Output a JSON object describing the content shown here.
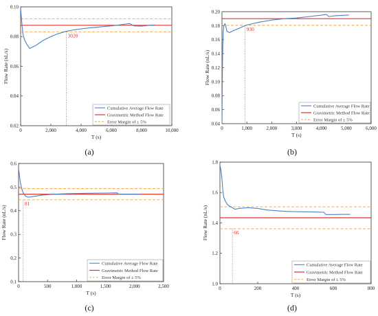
{
  "colors": {
    "cumulative": "#4a7fc1",
    "gravimetric": "#e0302a",
    "error_margin": "#f0a23a",
    "annotation": "#e0302a",
    "axis": "#333333",
    "vline": "#555555"
  },
  "chart_data": [
    {
      "panel": "(a)",
      "type": "line",
      "xlabel": "T (s)",
      "ylabel": "Flow Rate (nL/s)",
      "xlim": [
        0,
        10000
      ],
      "ylim": [
        0.02,
        0.1
      ],
      "xticks": [
        0,
        2000,
        4000,
        6000,
        8000,
        10000
      ],
      "xtick_labels": [
        "0",
        "2,000",
        "4,000",
        "6,000",
        "8,000",
        "10,000"
      ],
      "yticks": [
        0.02,
        0.04,
        0.06,
        0.08,
        0.1
      ],
      "ytick_labels": [
        "0.02",
        "0.04",
        "0.06",
        "0.08",
        "0.10"
      ],
      "legend_position": "bottom-right",
      "legend": [
        "Cumulative Average Flow Rate",
        "Gravimetric Method Flow Rate",
        "Error Margin of ± 5%"
      ],
      "gravimetric": 0.0876,
      "error_upper": 0.092,
      "error_lower": 0.0832,
      "annotation": {
        "x": 3020,
        "text": "3020"
      },
      "series": [
        {
          "x": [
            0,
            50,
            100,
            150,
            250,
            400,
            600,
            800,
            1000,
            1500,
            2000,
            2500,
            3000,
            3500,
            4000,
            4500,
            5000,
            5500,
            6000,
            6500,
            7000,
            7200,
            7500,
            8000,
            8500,
            8900
          ],
          "y": [
            0.099,
            0.093,
            0.087,
            0.082,
            0.078,
            0.075,
            0.072,
            0.073,
            0.074,
            0.0775,
            0.08,
            0.082,
            0.0835,
            0.0845,
            0.0852,
            0.0858,
            0.0862,
            0.0868,
            0.0872,
            0.0878,
            0.0885,
            0.0888,
            0.0872,
            0.087,
            0.0876,
            0.0878
          ]
        }
      ]
    },
    {
      "panel": "(b)",
      "type": "line",
      "xlabel": "T (s)",
      "ylabel": "Flow Rate (nL/s)",
      "xlim": [
        0,
        6000
      ],
      "ylim": [
        0.04,
        0.2
      ],
      "xticks": [
        0,
        1000,
        2000,
        3000,
        4000,
        5000,
        6000
      ],
      "xtick_labels": [
        "0",
        "1,000",
        "2,000",
        "3,000",
        "4,000",
        "5,000",
        "6,000"
      ],
      "yticks": [
        0.04,
        0.06,
        0.08,
        0.1,
        0.12,
        0.14,
        0.16,
        0.18,
        0.2
      ],
      "ytick_labels": [
        "0.04",
        "0.06",
        "0.08",
        "0.10",
        "0.12",
        "0.14",
        "0.16",
        "0.18",
        "0.20"
      ],
      "legend_position": "bottom-right",
      "legend": [
        "Cumulative Average Flow Rate",
        "Gravimetric Method Flow Rate",
        "Error Margin of ± 5%"
      ],
      "gravimetric": 0.19,
      "error_upper": 0.1995,
      "error_lower": 0.1805,
      "annotation": {
        "x": 930,
        "text": "930"
      },
      "series": [
        {
          "x": [
            0,
            10,
            25,
            50,
            80,
            120,
            160,
            200,
            300,
            400,
            600,
            800,
            1000,
            1500,
            2000,
            2500,
            3000,
            3500,
            4000,
            4200,
            4300,
            4500,
            5000,
            5100
          ],
          "y": [
            0.04,
            0.09,
            0.14,
            0.172,
            0.18,
            0.183,
            0.178,
            0.172,
            0.17,
            0.172,
            0.175,
            0.178,
            0.181,
            0.185,
            0.188,
            0.19,
            0.191,
            0.193,
            0.195,
            0.196,
            0.193,
            0.194,
            0.195,
            0.195
          ]
        }
      ]
    },
    {
      "panel": "(c)",
      "type": "line",
      "xlabel": "T (s)",
      "ylabel": "Flow Rate (nL/s)",
      "xlim": [
        0,
        2500
      ],
      "ylim": [
        0.1,
        0.6
      ],
      "xticks": [
        0,
        500,
        1000,
        1500,
        2000,
        2500
      ],
      "xtick_labels": [
        "0",
        "500",
        "1,000",
        "1,500",
        "2,000",
        "2,500"
      ],
      "yticks": [
        0.1,
        0.2,
        0.3,
        0.4,
        0.5,
        0.6
      ],
      "ytick_labels": [
        "0.1",
        "0.2",
        "0.3",
        "0.4",
        "0.5",
        "0.6"
      ],
      "legend_position": "bottom-right",
      "legend": [
        "Cumulative Average Flow Rate",
        "Gravimetric Method Flow Rate",
        "Error Margin of ± 5%"
      ],
      "gravimetric": 0.47,
      "error_upper": 0.4935,
      "error_lower": 0.4465,
      "annotation": {
        "x": 81,
        "text": "81"
      },
      "series": [
        {
          "x": [
            0,
            10,
            30,
            60,
            81,
            120,
            160,
            200,
            300,
            400,
            600,
            800,
            1000,
            1200,
            1500,
            1700,
            1720,
            1800,
            2000,
            2100
          ],
          "y": [
            0.58,
            0.56,
            0.52,
            0.49,
            0.475,
            0.462,
            0.458,
            0.458,
            0.462,
            0.466,
            0.47,
            0.472,
            0.473,
            0.474,
            0.475,
            0.476,
            0.47,
            0.47,
            0.47,
            0.47
          ]
        }
      ]
    },
    {
      "panel": "(d)",
      "type": "line",
      "xlabel": "T (s)",
      "ylabel": "Flow Rate (nL/s)",
      "xlim": [
        0,
        800
      ],
      "ylim": [
        1.0,
        1.8
      ],
      "xticks": [
        0,
        200,
        400,
        600,
        800
      ],
      "xtick_labels": [
        "0",
        "200",
        "400",
        "600",
        "800"
      ],
      "yticks": [
        1.0,
        1.2,
        1.4,
        1.6,
        1.8
      ],
      "ytick_labels": [
        "1.0",
        "1.2",
        "1.4",
        "1.6",
        "1.8"
      ],
      "legend_position": "bottom-right",
      "legend": [
        "Cumulative Average Flow Rate",
        "Gravimetric Method Flow Rate",
        "Error Margin of ± 5%"
      ],
      "gravimetric": 1.434,
      "error_upper": 1.506,
      "error_lower": 1.362,
      "annotation": {
        "x": 66,
        "text": "66"
      },
      "series": [
        {
          "x": [
            0,
            5,
            10,
            15,
            20,
            30,
            40,
            50,
            66,
            80,
            100,
            150,
            200,
            250,
            300,
            350,
            400,
            450,
            500,
            550,
            560,
            600,
            650,
            690
          ],
          "y": [
            1.78,
            1.75,
            1.7,
            1.62,
            1.57,
            1.54,
            1.52,
            1.51,
            1.5,
            1.49,
            1.495,
            1.5,
            1.495,
            1.485,
            1.48,
            1.476,
            1.474,
            1.473,
            1.472,
            1.47,
            1.455,
            1.455,
            1.456,
            1.456
          ]
        }
      ]
    }
  ]
}
